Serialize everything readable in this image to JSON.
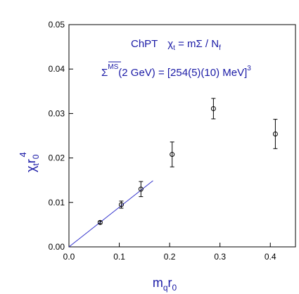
{
  "chart_data": {
    "type": "scatter",
    "title": "",
    "xlabel_main": "m",
    "xlabel_sub1": "q",
    "xlabel_mid": "r",
    "xlabel_sub2": "0",
    "ylabel_main": "χ",
    "ylabel_sub1": "t",
    "ylabel_mid": "r",
    "ylabel_sub2": "0",
    "ylabel_sup": "4",
    "xlim": [
      0.0,
      0.45
    ],
    "ylim": [
      0.0,
      0.05
    ],
    "x_ticks": [
      "0.0",
      "0.1",
      "0.2",
      "0.3",
      "0.4"
    ],
    "x_tick_values": [
      0.0,
      0.1,
      0.2,
      0.3,
      0.4
    ],
    "y_ticks": [
      "0.00",
      "0.01",
      "0.02",
      "0.03",
      "0.04",
      "0.05"
    ],
    "y_tick_values": [
      0.0,
      0.01,
      0.02,
      0.03,
      0.04,
      0.05
    ],
    "annotation1": {
      "prefix": "ChPT",
      "chi": "χ",
      "chi_sub": "t",
      "rest": " = mΣ / N",
      "n_sub": "f"
    },
    "annotation2": {
      "sigma": "Σ",
      "sigma_sup": "MS",
      "rest": "(2 GeV) = [254(5)(10) MeV]",
      "power": "3"
    },
    "points": [
      {
        "x": 0.062,
        "y": 0.0055,
        "err": 0.0003
      },
      {
        "x": 0.104,
        "y": 0.0095,
        "err": 0.0008
      },
      {
        "x": 0.143,
        "y": 0.013,
        "err": 0.0017
      },
      {
        "x": 0.205,
        "y": 0.0208,
        "err": 0.0028
      },
      {
        "x": 0.287,
        "y": 0.0311,
        "err": 0.0023
      },
      {
        "x": 0.41,
        "y": 0.0254,
        "err": 0.0033
      }
    ],
    "fit_line": {
      "x": [
        0.0,
        0.167
      ],
      "y": [
        0.0,
        0.0149
      ]
    },
    "colors": {
      "fit_line": "#3333cc",
      "text": "#1a1aa6",
      "markers": "#000000"
    }
  }
}
